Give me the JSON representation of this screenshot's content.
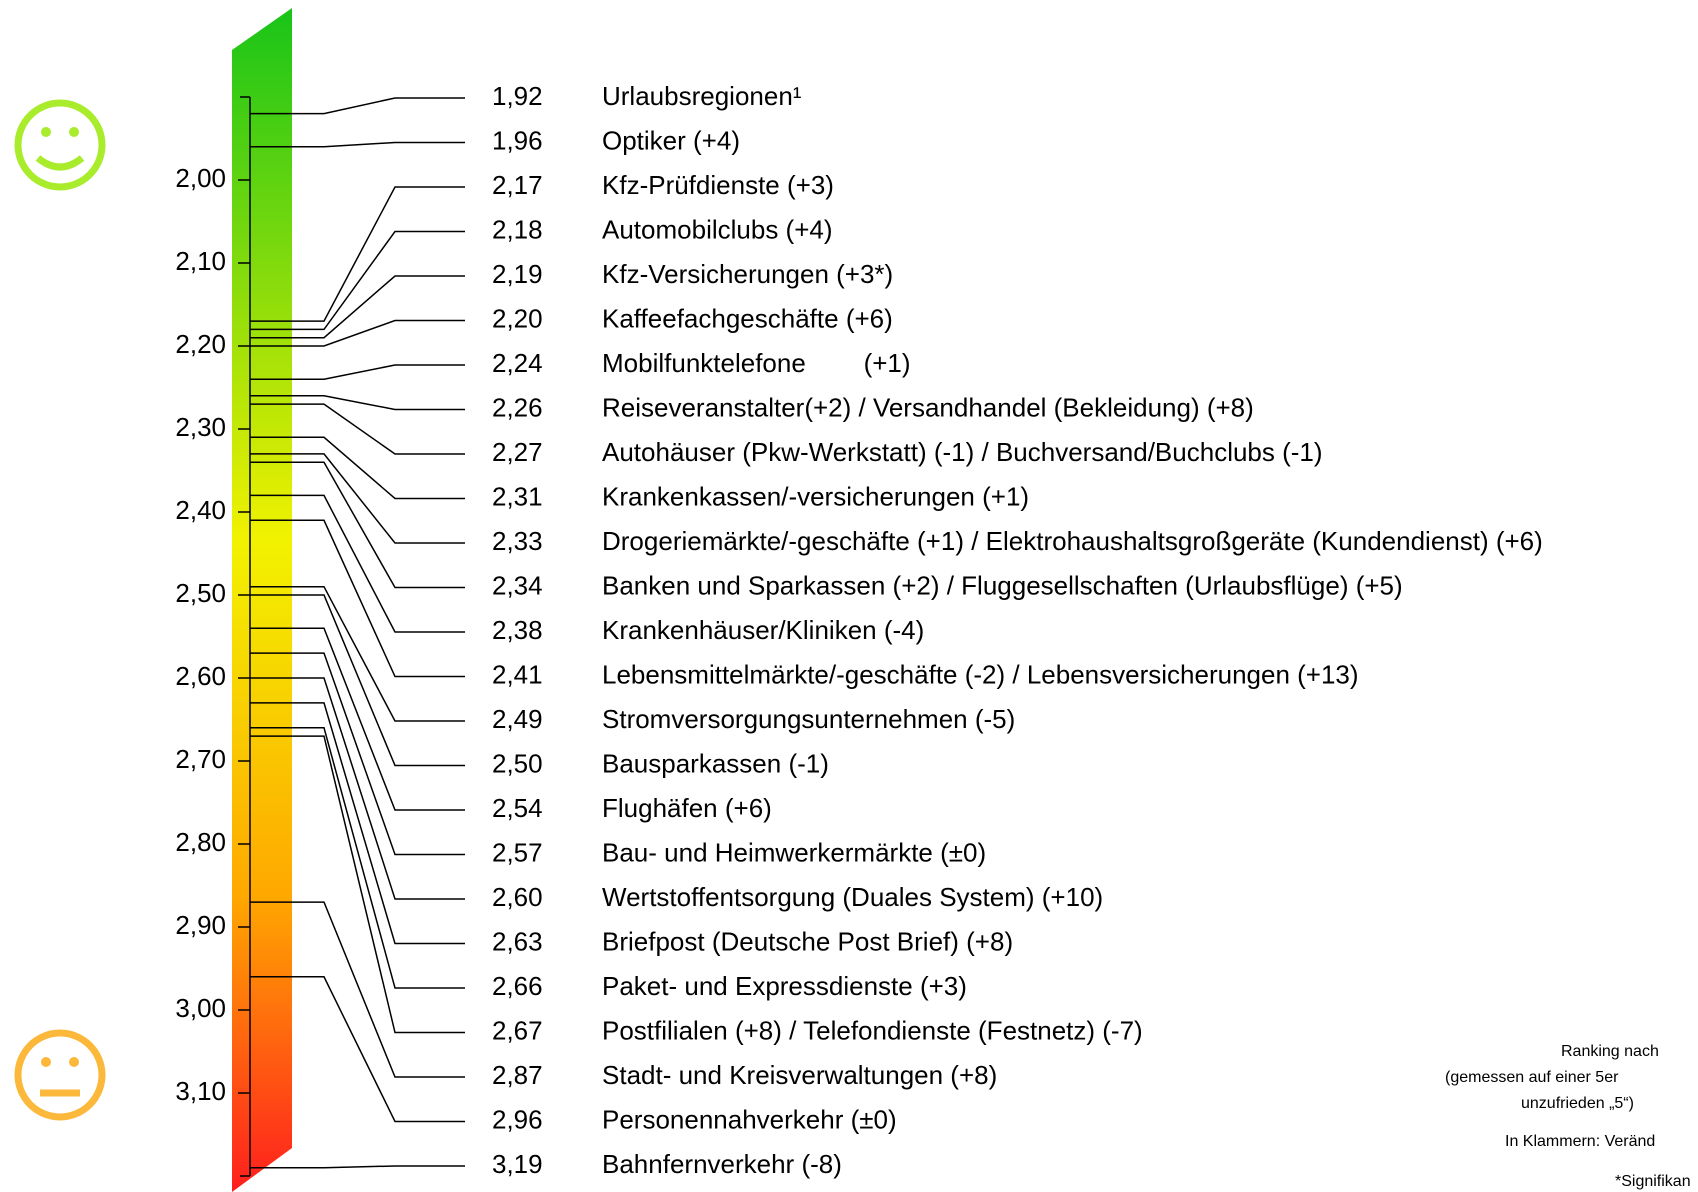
{
  "chart_data": {
    "type": "scale",
    "categories": [
      "Urlaubsregionen¹",
      "Optiker (+4)",
      "Kfz-Prüfdienste (+3)",
      "Automobilclubs (+4)",
      "Kfz-Versicherungen (+3*)",
      "Kaffeefachgeschäfte (+6)",
      "Mobilfunktelefone        (+1)",
      "Reiseveranstalter(+2) / Versandhandel (Bekleidung) (+8)",
      "Autohäuser (Pkw-Werkstatt) (-1) / Buchversand/Buchclubs (-1)",
      "Krankenkassen/-versicherungen (+1)",
      "Drogeriemärkte/-geschäfte (+1) / Elektrohaushaltsgroßgeräte (Kundendienst) (+6)",
      "Banken und Sparkassen (+2) / Fluggesellschaften (Urlaubsflüge) (+5)",
      "Krankenhäuser/Kliniken (-4)",
      "Lebensmittelmärkte/-geschäfte (-2) / Lebensversicherungen (+13)",
      "Stromversorgungsunternehmen (-5)",
      "Bausparkassen (-1)",
      "Flughäfen (+6)",
      "Bau- und Heimwerkermärkte (±0)",
      "Wertstoffentsorgung (Duales System) (+10)",
      "Briefpost (Deutsche Post Brief) (+8)",
      "Paket- und Expressdienste (+3)",
      "Postfilialen (+8) / Telefondienste (Festnetz) (-7)",
      "Stadt- und Kreisverwaltungen (+8)",
      "Personennahverkehr (±0)",
      "Bahnfernverkehr (-8)"
    ],
    "values": [
      1.92,
      1.96,
      2.17,
      2.18,
      2.19,
      2.2,
      2.24,
      2.26,
      2.27,
      2.31,
      2.33,
      2.34,
      2.38,
      2.41,
      2.49,
      2.5,
      2.54,
      2.57,
      2.6,
      2.63,
      2.66,
      2.67,
      2.87,
      2.96,
      3.19
    ],
    "value_labels": [
      "1,92",
      "1,96",
      "2,17",
      "2,18",
      "2,19",
      "2,20",
      "2,24",
      "2,26",
      "2,27",
      "2,31",
      "2,33",
      "2,34",
      "2,38",
      "2,41",
      "2,49",
      "2,50",
      "2,54",
      "2,57",
      "2,60",
      "2,63",
      "2,66",
      "2,67",
      "2,87",
      "2,96",
      "3,19"
    ],
    "ylim": [
      1.9,
      3.2
    ],
    "yticks": [
      {
        "value": 2,
        "label": "2,00"
      },
      {
        "value": 2.1,
        "label": "2,10"
      },
      {
        "value": 2.2,
        "label": "2,20"
      },
      {
        "value": 2.3,
        "label": "2,30"
      },
      {
        "value": 2.4,
        "label": "2,40"
      },
      {
        "value": 2.5,
        "label": "2,50"
      },
      {
        "value": 2.6,
        "label": "2,60"
      },
      {
        "value": 2.7,
        "label": "2,70"
      },
      {
        "value": 2.8,
        "label": "2,80"
      },
      {
        "value": 2.9,
        "label": "2,90"
      },
      {
        "value": 3,
        "label": "3,00"
      },
      {
        "value": 3.1,
        "label": "3,10"
      }
    ],
    "notes": [
      "Ranking nach",
      "(gemessen auf einer 5er",
      "unzufrieden „5“)",
      "In Klammern: Veränd",
      "*Signifikan"
    ]
  }
}
